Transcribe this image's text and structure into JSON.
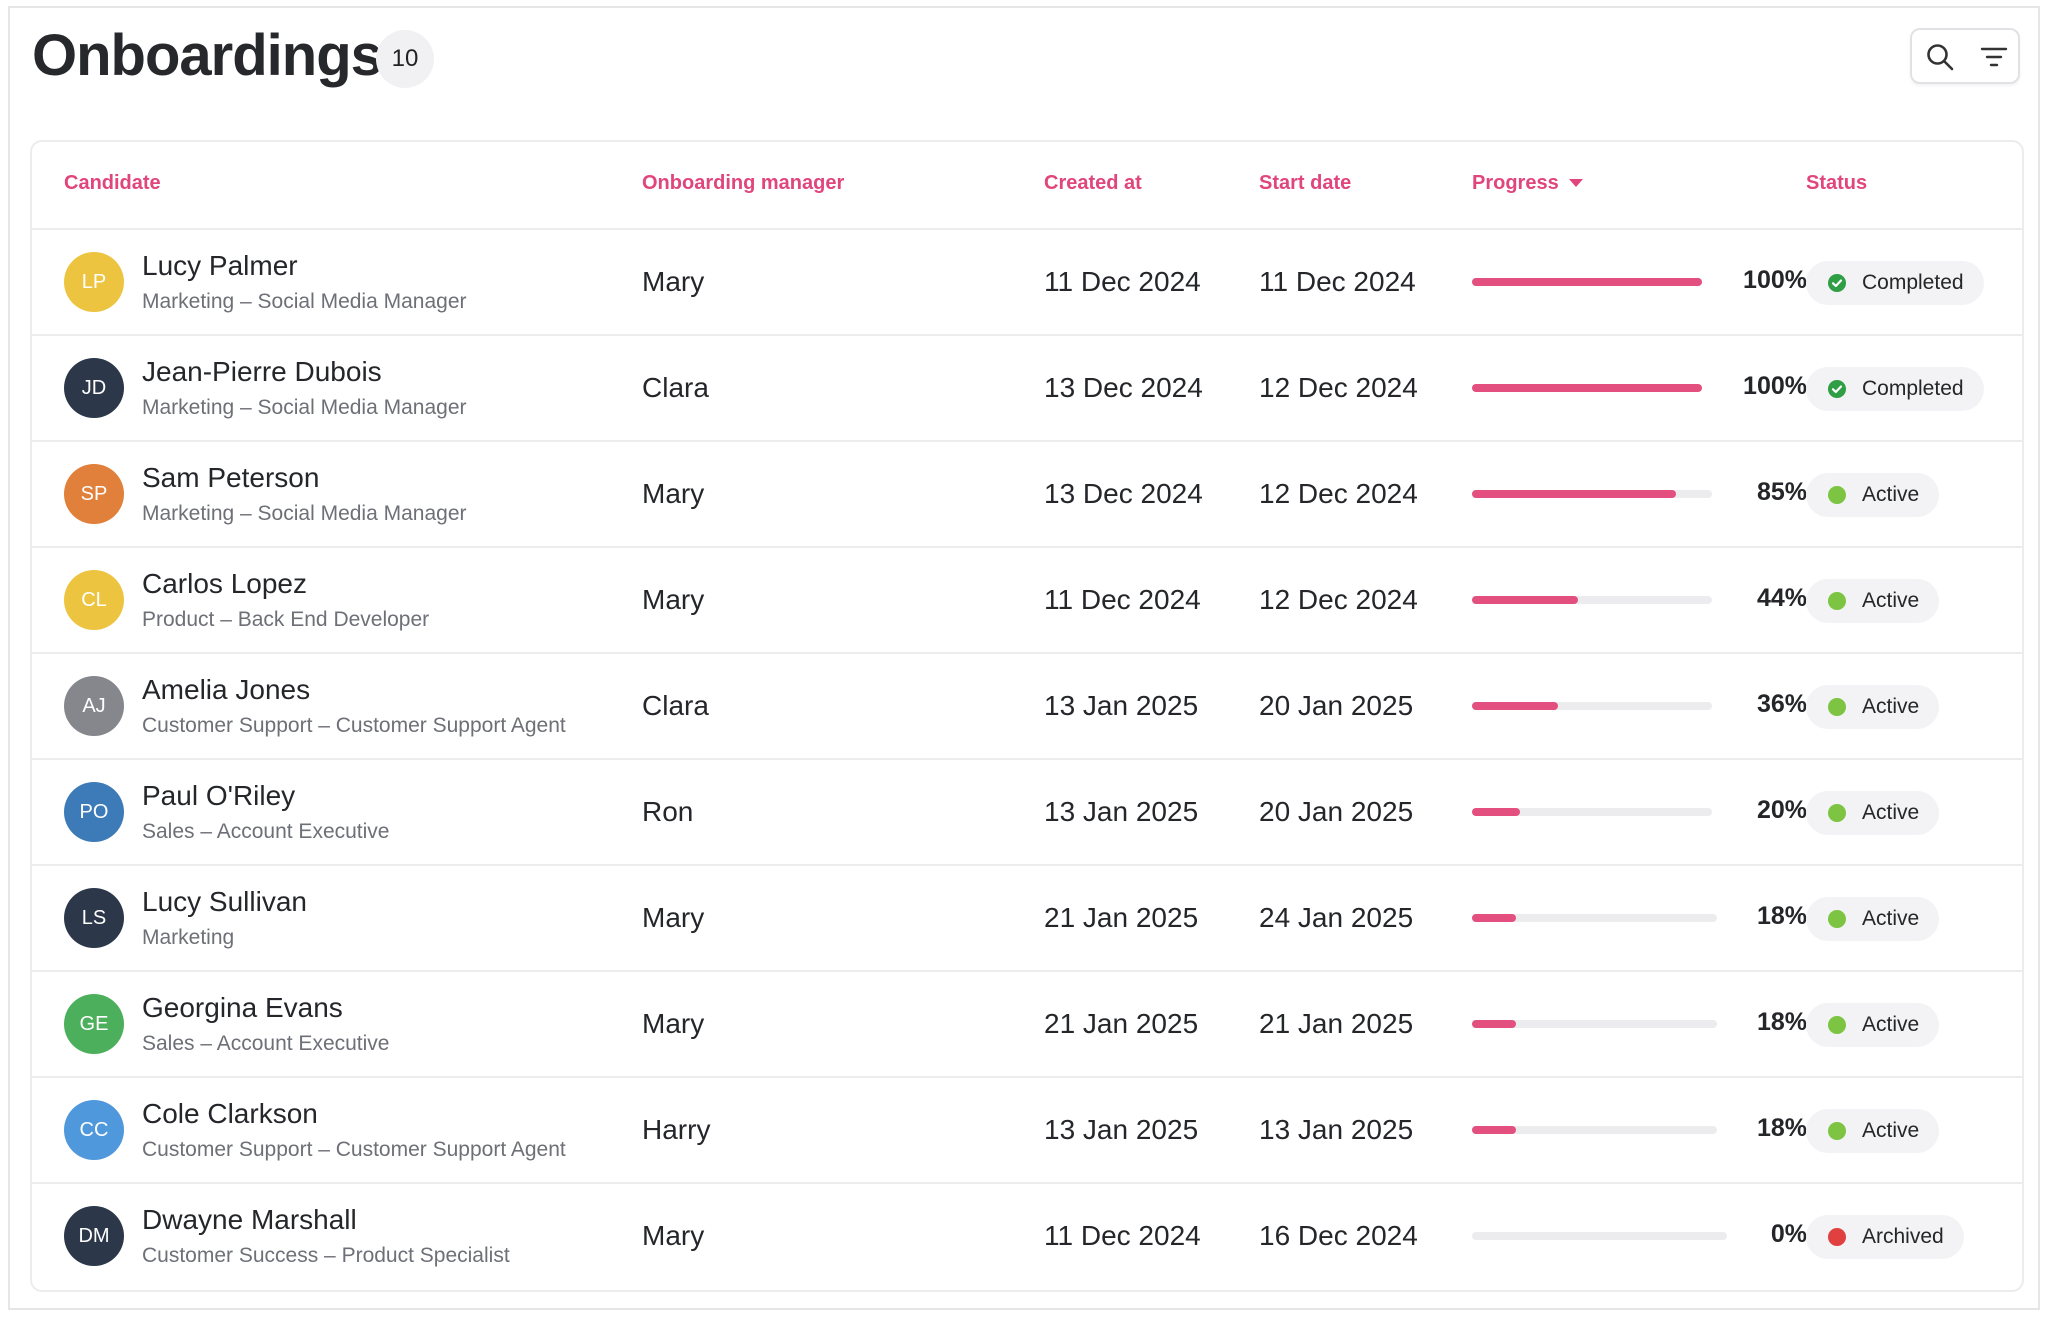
{
  "header": {
    "title": "Onboardings",
    "count": "10",
    "search_icon": "search-icon",
    "filter_icon": "filter-icon"
  },
  "table": {
    "columns": {
      "candidate": "Candidate",
      "manager": "Onboarding manager",
      "created": "Created at",
      "start": "Start date",
      "progress": "Progress",
      "status": "Status"
    },
    "rows": [
      {
        "initials": "LP",
        "avatar_color": "#ecc440",
        "name": "Lucy Palmer",
        "role": "Marketing – Social Media Manager",
        "manager": "Mary",
        "created": "11 Dec 2024",
        "start": "11 Dec 2024",
        "progress": 100,
        "progress_label": "100%",
        "status": "Completed",
        "status_color": "#2f9e44"
      },
      {
        "initials": "JD",
        "avatar_color": "#2c3849",
        "name": "Jean-Pierre Dubois",
        "role": "Marketing – Social Media Manager",
        "manager": "Clara",
        "created": "13 Dec 2024",
        "start": "12 Dec 2024",
        "progress": 100,
        "progress_label": "100%",
        "status": "Completed",
        "status_color": "#2f9e44"
      },
      {
        "initials": "SP",
        "avatar_color": "#e0803a",
        "name": "Sam Peterson",
        "role": "Marketing – Social Media Manager",
        "manager": "Mary",
        "created": "13 Dec 2024",
        "start": "12 Dec 2024",
        "progress": 85,
        "progress_label": "85%",
        "status": "Active",
        "status_color": "#7cc441"
      },
      {
        "initials": "CL",
        "avatar_color": "#ecc440",
        "name": "Carlos Lopez",
        "role": "Product – Back End Developer",
        "manager": "Mary",
        "created": "11 Dec 2024",
        "start": "12 Dec 2024",
        "progress": 44,
        "progress_label": "44%",
        "status": "Active",
        "status_color": "#7cc441"
      },
      {
        "initials": "AJ",
        "avatar_color": "#85878c",
        "name": "Amelia Jones",
        "role": "Customer Support – Customer Support Agent",
        "manager": "Clara",
        "created": "13 Jan 2025",
        "start": "20 Jan 2025",
        "progress": 36,
        "progress_label": "36%",
        "status": "Active",
        "status_color": "#7cc441"
      },
      {
        "initials": "PO",
        "avatar_color": "#3d7ab8",
        "name": "Paul O'Riley",
        "role": "Sales – Account Executive",
        "manager": "Ron",
        "created": "13 Jan 2025",
        "start": "20 Jan 2025",
        "progress": 20,
        "progress_label": "20%",
        "status": "Active",
        "status_color": "#7cc441"
      },
      {
        "initials": "LS",
        "avatar_color": "#2c3849",
        "name": "Lucy Sullivan",
        "role": "Marketing",
        "manager": "Mary",
        "created": "21 Jan 2025",
        "start": "24 Jan 2025",
        "progress": 18,
        "progress_label": "18%",
        "status": "Active",
        "status_color": "#7cc441"
      },
      {
        "initials": "GE",
        "avatar_color": "#4caf5b",
        "name": "Georgina Evans",
        "role": "Sales – Account Executive",
        "manager": "Mary",
        "created": "21 Jan 2025",
        "start": "21 Jan 2025",
        "progress": 18,
        "progress_label": "18%",
        "status": "Active",
        "status_color": "#7cc441"
      },
      {
        "initials": "CC",
        "avatar_color": "#4f98dc",
        "name": "Cole Clarkson",
        "role": "Customer Support – Customer Support Agent",
        "manager": "Harry",
        "created": "13 Jan 2025",
        "start": "13 Jan 2025",
        "progress": 18,
        "progress_label": "18%",
        "status": "Active",
        "status_color": "#7cc441"
      },
      {
        "initials": "DM",
        "avatar_color": "#2c3849",
        "name": "Dwayne Marshall",
        "role": "Customer Success – Product Specialist",
        "manager": "Mary",
        "created": "11 Dec 2024",
        "start": "16 Dec 2024",
        "progress": 0,
        "progress_label": "0%",
        "status": "Archived",
        "status_color": "#e0403f"
      }
    ]
  },
  "colors": {
    "accent": "#e0457b",
    "progress_fill": "#e3507f",
    "progress_track": "#ececee"
  }
}
